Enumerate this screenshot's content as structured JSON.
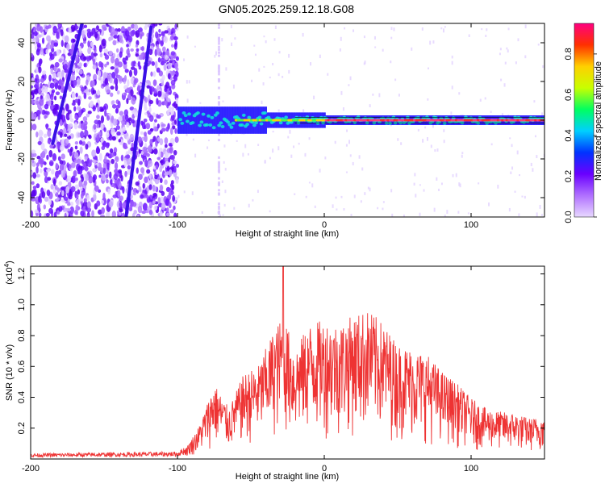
{
  "figure": {
    "title": "GN05.2025.259.12.18.G08"
  },
  "chart_data": [
    {
      "type": "heatmap",
      "name": "spectrogram",
      "xlabel": "Height of straight line (km)",
      "ylabel": "Frequency (Hz)",
      "xlim": [
        -200,
        150
      ],
      "ylim": [
        -50,
        50
      ],
      "xticks": [
        -200,
        -100,
        0,
        100
      ],
      "yticks": [
        -40,
        -20,
        0,
        20,
        40
      ],
      "colorbar": {
        "label": "Normalized spectral amplitude",
        "range": [
          0,
          0.95
        ],
        "ticks": [
          "0.0",
          "0.2",
          "0.4",
          "0.6",
          "0.8"
        ],
        "colormap": [
          "#e8d8ff",
          "#b070ff",
          "#6a00ff",
          "#0033ff",
          "#00d0ff",
          "#00ff60",
          "#c8ff00",
          "#ffd000",
          "#ff3000",
          "#ff0080"
        ]
      },
      "features": {
        "noise_region_x": [
          -200,
          -100
        ],
        "signal_band_center_hz": 0,
        "satellite_tracks": [
          {
            "x_start": -185,
            "y_start": -12,
            "x_end": -165,
            "y_end": 50
          },
          {
            "x_start": -135,
            "y_start": -50,
            "x_end": -118,
            "y_end": 48
          }
        ]
      }
    },
    {
      "type": "line",
      "name": "snr",
      "xlabel": "Height of straight line (km)",
      "ylabel": "SNR (10 * v/v)",
      "ylabel_multiplier": "(x10",
      "ylabel_multiplier_exp": "4",
      "ylabel_multiplier_close": ")",
      "xlim": [
        -200,
        150
      ],
      "ylim": [
        0,
        1.25
      ],
      "xticks": [
        -200,
        -100,
        0,
        100
      ],
      "yticks": [
        "0.2",
        "0.4",
        "0.6",
        "0.8",
        "1.0",
        "1.2"
      ],
      "color": "#ee3333",
      "envelope_x": [
        -200,
        -100,
        -93,
        -85,
        -75,
        -65,
        -55,
        -45,
        -35,
        -28,
        -20,
        -10,
        0,
        10,
        20,
        30,
        40,
        50,
        60,
        70,
        80,
        90,
        100,
        110,
        120,
        130,
        140,
        150
      ],
      "envelope_y": [
        0.03,
        0.04,
        0.08,
        0.2,
        0.45,
        0.3,
        0.5,
        0.55,
        0.75,
        0.85,
        0.65,
        0.8,
        0.82,
        0.8,
        0.85,
        0.88,
        0.8,
        0.68,
        0.65,
        0.62,
        0.52,
        0.45,
        0.36,
        0.3,
        0.28,
        0.27,
        0.24,
        0.25
      ],
      "spikes": [
        {
          "x": -28,
          "y": 1.25
        }
      ]
    }
  ]
}
